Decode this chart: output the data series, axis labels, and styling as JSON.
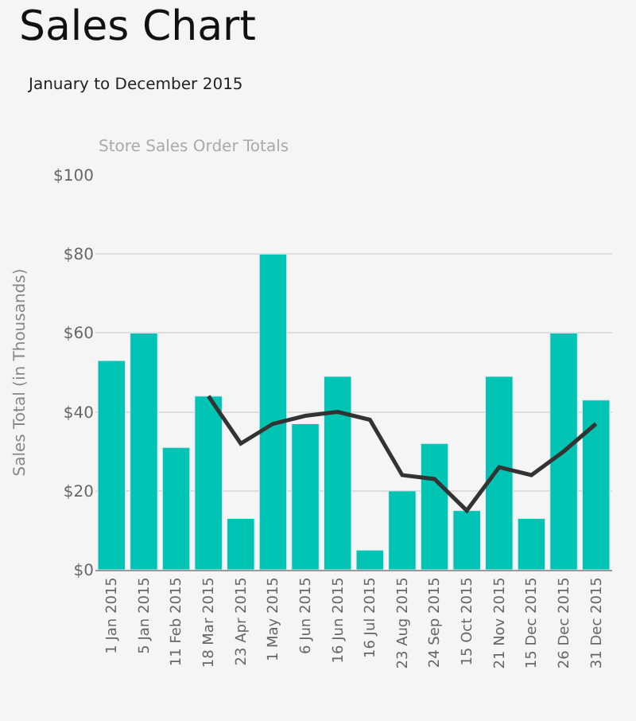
{
  "chart_data": {
    "type": "bar",
    "title": "Sales Chart",
    "subtitle": "January to December 2015",
    "annotations": [
      "Store Sales Order Totals"
    ],
    "ylabel": "Sales Total (in Thousands)",
    "categories": [
      "1 Jan 2015",
      "5 Jan 2015",
      "11 Feb 2015",
      "18 Mar 2015",
      "23 Apr 2015",
      "1 May 2015",
      "6 Jun 2015",
      "16 Jun 2015",
      "16 Jul 2015",
      "23 Aug 2015",
      "24 Sep 2015",
      "15 Oct 2015",
      "21 Nov 2015",
      "15 Dec 2015",
      "26 Dec 2015",
      "31 Dec 2015"
    ],
    "series": [
      {
        "color": "#00c4b3",
        "values": [
          53,
          60,
          31,
          44,
          13,
          80,
          37,
          49,
          5,
          20,
          32,
          15,
          49,
          13,
          60,
          43
        ]
      },
      {
        "type": "line",
        "color": "#333333",
        "values": [
          null,
          null,
          null,
          44,
          32,
          37,
          39,
          40,
          38,
          24,
          23,
          15,
          26,
          24,
          30,
          37
        ]
      }
    ],
    "ylim": [
      0,
      100
    ],
    "yticks": [
      {
        "value": 0,
        "label": "$0"
      },
      {
        "value": 20,
        "label": "$20"
      },
      {
        "value": 40,
        "label": "$40"
      },
      {
        "value": 60,
        "label": "$60"
      },
      {
        "value": 80,
        "label": "$80"
      },
      {
        "value": 100,
        "label": "$100"
      }
    ],
    "grid": "y",
    "marker": "none",
    "line_style": "solid"
  }
}
